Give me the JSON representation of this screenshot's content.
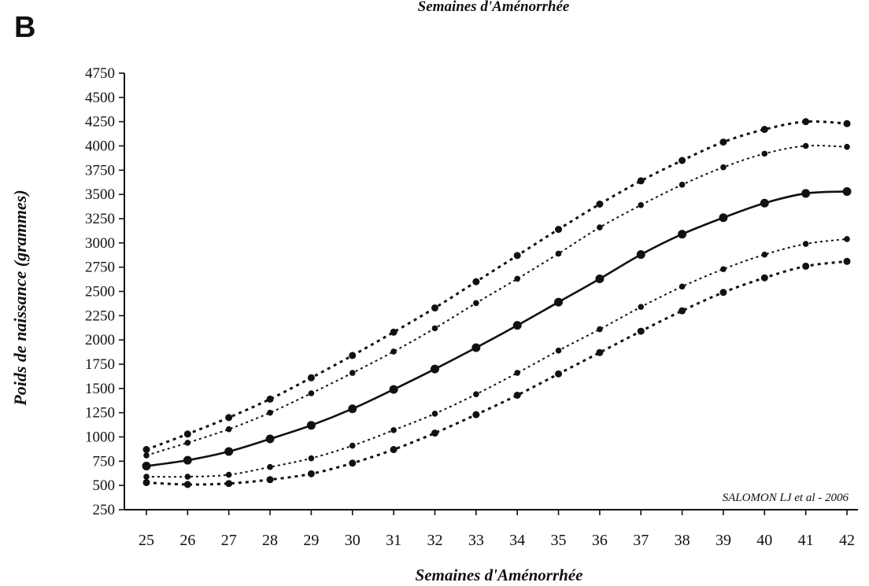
{
  "panel_label": "B",
  "top_caption": "Semaines d'Aménorrhée",
  "chart_data": {
    "type": "line",
    "xlabel": "Semaines d'Aménorrhée",
    "ylabel": "Poids de naissance (grammes)",
    "annotation": "SALOMON LJ et al - 2006",
    "xlim": [
      25,
      42
    ],
    "ylim": [
      250,
      4750
    ],
    "x": [
      25,
      26,
      27,
      28,
      29,
      30,
      31,
      32,
      33,
      34,
      35,
      36,
      37,
      38,
      39,
      40,
      41,
      42
    ],
    "x_tick_labels": [
      "25",
      "26",
      "27",
      "28",
      "29",
      "30",
      "31",
      "32",
      "33",
      "34",
      "35",
      "36",
      "37",
      "38",
      "39",
      "40",
      "41",
      "42"
    ],
    "y_ticks": [
      250,
      500,
      750,
      1000,
      1250,
      1500,
      1750,
      2000,
      2250,
      2500,
      2750,
      3000,
      3250,
      3500,
      3750,
      4000,
      4250,
      4500,
      4750
    ],
    "y_tick_labels": [
      "250",
      "500",
      "750",
      "1000",
      "1250",
      "1500",
      "1750",
      "2000",
      "2250",
      "2500",
      "2750",
      "3000",
      "3250",
      "3500",
      "3750",
      "4000",
      "4250",
      "4500",
      "4750"
    ],
    "grid": false,
    "series": [
      {
        "style": "dotted-bold",
        "values": [
          870,
          1030,
          1200,
          1390,
          1610,
          1840,
          2080,
          2330,
          2600,
          2870,
          3140,
          3400,
          3640,
          3850,
          4040,
          4170,
          4250,
          4230
        ]
      },
      {
        "style": "dotted",
        "values": [
          810,
          940,
          1080,
          1250,
          1450,
          1660,
          1880,
          2120,
          2380,
          2630,
          2890,
          3160,
          3390,
          3600,
          3780,
          3920,
          4000,
          3990
        ]
      },
      {
        "style": "solid",
        "values": [
          700,
          760,
          850,
          980,
          1120,
          1290,
          1490,
          1700,
          1920,
          2150,
          2390,
          2630,
          2880,
          3090,
          3260,
          3410,
          3510,
          3530
        ]
      },
      {
        "style": "dotted",
        "values": [
          590,
          590,
          610,
          690,
          780,
          910,
          1070,
          1240,
          1440,
          1660,
          1890,
          2110,
          2340,
          2550,
          2730,
          2880,
          2990,
          3040
        ]
      },
      {
        "style": "dotted-bold",
        "values": [
          530,
          510,
          520,
          560,
          620,
          730,
          870,
          1040,
          1230,
          1430,
          1650,
          1870,
          2090,
          2300,
          2490,
          2640,
          2760,
          2810
        ]
      }
    ]
  }
}
